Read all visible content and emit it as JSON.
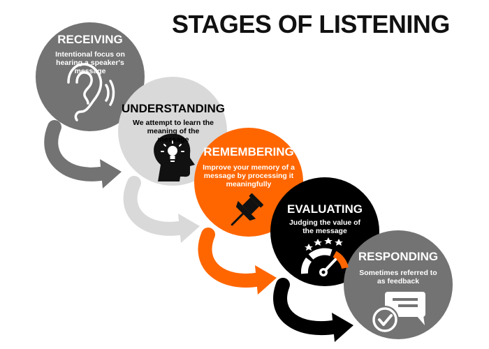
{
  "title": "STAGES OF LISTENING",
  "colors": {
    "receiving": "#737373",
    "understanding": "#d9d9d9",
    "remembering": "#ff6600",
    "evaluating": "#000000",
    "responding": "#737373"
  },
  "stages": [
    {
      "title": "RECEIVING",
      "description": "Intentional focus on hearing a speaker's message",
      "icon": "ear-icon"
    },
    {
      "title": "UNDERSTANDING",
      "description": "We attempt to learn the meaning of the message",
      "icon": "lightbulb-head-icon"
    },
    {
      "title": "REMEMBERING",
      "description": "Improve your memory of a message by processing it meaningfully",
      "icon": "pushpin-icon"
    },
    {
      "title": "EVALUATING",
      "description": "Judging the value of the message",
      "icon": "gauge-stars-icon"
    },
    {
      "title": "RESPONDING",
      "description": "Sometimes referred to as feedback",
      "icon": "chat-check-icon"
    }
  ]
}
